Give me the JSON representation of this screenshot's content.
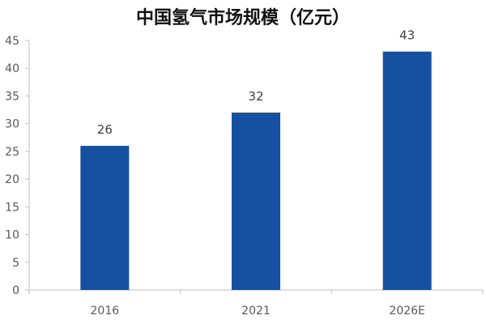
{
  "chart_data": {
    "type": "bar",
    "title": "中国氢气市场规模（亿元）",
    "xlabel": "",
    "ylabel": "",
    "categories": [
      "2016",
      "2021",
      "2026E"
    ],
    "values": [
      26,
      32,
      43
    ],
    "data_labels": [
      "26",
      "32",
      "43"
    ],
    "ylim": [
      0,
      45
    ],
    "yticks": [
      0,
      5,
      10,
      15,
      20,
      25,
      30,
      35,
      40,
      45
    ],
    "grid": false,
    "bar_color": "#1651a1",
    "axis_color": "#bfbfbf"
  }
}
